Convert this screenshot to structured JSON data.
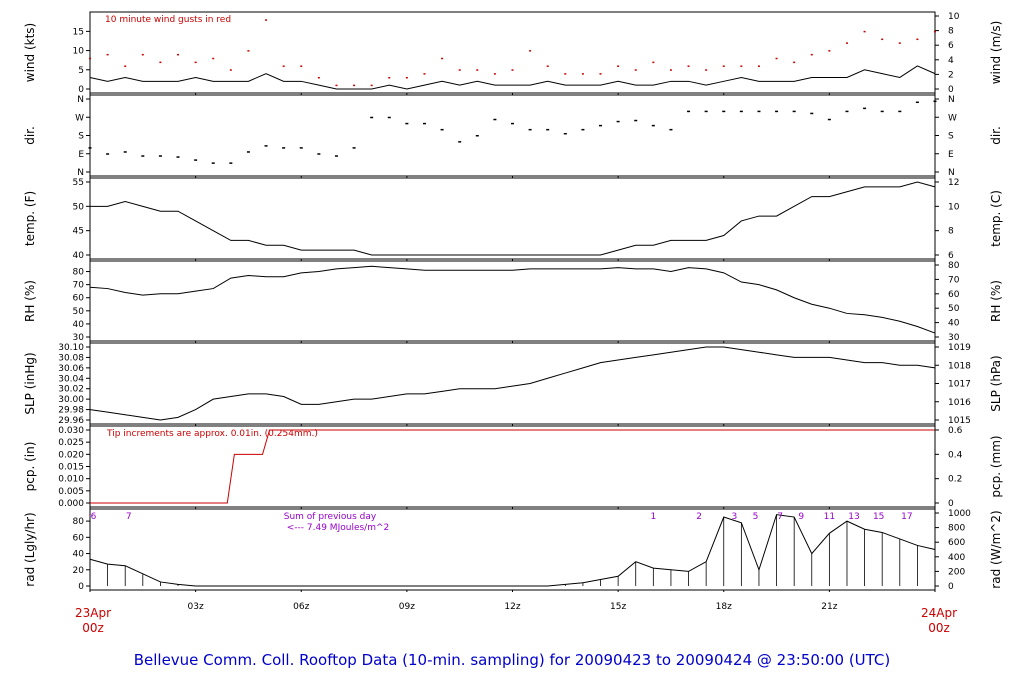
{
  "title": "Bellevue Comm. Coll. Rooftop Data (10-min. sampling) for 20090423  to  20090424 @ 23:50:00  (UTC)",
  "colors": {
    "line": "#000000",
    "gust": "#cc0000",
    "note": "#cc0000",
    "hour": "#9900cc",
    "footer": "#0000cc"
  },
  "x_axis": {
    "ticks": [
      "03z",
      "06z",
      "09z",
      "12z",
      "15z",
      "18z",
      "21z"
    ],
    "start": [
      "23Apr",
      "00z"
    ],
    "end": [
      "24Apr",
      "00z"
    ]
  },
  "panels": {
    "wind": {
      "ylabel_left": "wind (kts)",
      "ylabel_right": "wind (m/s)",
      "left_ticks": [
        "0",
        "5",
        "10",
        "15"
      ],
      "right_ticks": [
        "0",
        "2",
        "4",
        "6",
        "8",
        "10"
      ],
      "note": "10  minute wind gusts in red"
    },
    "dir": {
      "ylabel_left": "dir.",
      "ylabel_right": "dir.",
      "left_ticks": [
        "N",
        "E",
        "S",
        "W",
        "N"
      ],
      "right_ticks": [
        "N",
        "E",
        "S",
        "W",
        "N"
      ]
    },
    "temp": {
      "ylabel_left": "temp. (F)",
      "ylabel_right": "temp. (C)",
      "left_ticks": [
        "40",
        "45",
        "50",
        "55"
      ],
      "right_ticks": [
        "6",
        "8",
        "10",
        "12"
      ]
    },
    "rh": {
      "ylabel_left": "RH (%)",
      "ylabel_right": "RH (%)",
      "left_ticks": [
        "30",
        "40",
        "50",
        "60",
        "70",
        "80"
      ],
      "right_ticks": [
        "30",
        "40",
        "50",
        "60",
        "70",
        "80"
      ]
    },
    "slp": {
      "ylabel_left": "SLP (inHg)",
      "ylabel_right": "SLP (hPa)",
      "left_ticks": [
        "29.96",
        "29.98",
        "30.00",
        "30.02",
        "30.04",
        "30.06",
        "30.08",
        "30.10"
      ],
      "right_ticks": [
        "1015",
        "1016",
        "1017",
        "1018",
        "1019"
      ]
    },
    "pcp": {
      "ylabel_left": "pcp. (in)",
      "ylabel_right": "pcp. (mm)",
      "left_ticks": [
        "0.000",
        "0.005",
        "0.010",
        "0.015",
        "0.020",
        "0.025",
        "0.030"
      ],
      "right_ticks": [
        "0",
        "0.2",
        "0.4",
        "0.6"
      ],
      "note": "Tip increments are approx. 0.01in. (0.254mm.)"
    },
    "rad": {
      "ylabel_left": "rad (Lgly/hr)",
      "ylabel_right": "rad (W/m^2)",
      "left_ticks": [
        "0",
        "20",
        "40",
        "60",
        "80"
      ],
      "right_ticks": [
        "0",
        "200",
        "400",
        "600",
        "800",
        "1000"
      ],
      "sum_label": "Sum of previous day",
      "sum_value": "<--- 7.49 MJoules/m^2",
      "hour_marks": [
        "6",
        "7",
        "1",
        "2",
        "3",
        "5",
        "7",
        "9",
        "11",
        "13",
        "15",
        "17"
      ]
    }
  },
  "chart_data": [
    {
      "type": "line",
      "name": "wind",
      "units": "kts",
      "ylim": [
        0,
        19
      ],
      "x_hours": [
        0,
        0.5,
        1,
        1.5,
        2,
        2.5,
        3,
        3.5,
        4,
        4.5,
        5,
        5.5,
        6,
        6.5,
        7,
        7.5,
        8,
        8.5,
        9,
        9.5,
        10,
        10.5,
        11,
        11.5,
        12,
        12.5,
        13,
        13.5,
        14,
        14.5,
        15,
        15.5,
        16,
        16.5,
        17,
        17.5,
        18,
        18.5,
        19,
        19.5,
        20,
        20.5,
        21,
        21.5,
        22,
        22.5,
        23,
        23.5,
        24
      ],
      "series": [
        {
          "name": "wind speed",
          "values": [
            3,
            2,
            3,
            2,
            2,
            2,
            3,
            2,
            2,
            2,
            4,
            2,
            2,
            1,
            0,
            0,
            0,
            1,
            0,
            1,
            2,
            1,
            2,
            1,
            1,
            1,
            2,
            1,
            1,
            1,
            2,
            1,
            1,
            2,
            2,
            1,
            2,
            3,
            2,
            2,
            2,
            3,
            3,
            3,
            5,
            4,
            3,
            6,
            4
          ]
        },
        {
          "name": "10  minute wind gusts in red",
          "values": [
            8,
            9,
            6,
            9,
            7,
            9,
            7,
            8,
            5,
            10,
            18,
            6,
            6,
            3,
            1,
            1,
            1,
            3,
            3,
            4,
            8,
            5,
            5,
            4,
            5,
            10,
            6,
            4,
            4,
            4,
            6,
            5,
            7,
            5,
            6,
            5,
            6,
            6,
            6,
            8,
            7,
            9,
            10,
            12,
            15,
            13,
            12,
            13,
            15
          ]
        }
      ]
    },
    {
      "type": "scatter",
      "name": "wind direction",
      "ylim": [
        0,
        360
      ],
      "x_hours": [
        0,
        0.5,
        1,
        1.5,
        2,
        2.5,
        3,
        3.5,
        4,
        4.5,
        5,
        5.5,
        6,
        6.5,
        7,
        7.5,
        8,
        8.5,
        9,
        9.5,
        10,
        10.5,
        11,
        11.5,
        12,
        12.5,
        13,
        13.5,
        14,
        14.5,
        15,
        15.5,
        16,
        16.5,
        17,
        17.5,
        18,
        18.5,
        19,
        19.5,
        20,
        20.5,
        21,
        21.5,
        22,
        22.5,
        23,
        23.5,
        24
      ],
      "values": [
        120,
        90,
        100,
        80,
        80,
        75,
        60,
        45,
        45,
        100,
        130,
        120,
        120,
        90,
        80,
        120,
        270,
        270,
        240,
        240,
        210,
        150,
        180,
        260,
        240,
        210,
        210,
        190,
        210,
        230,
        250,
        255,
        230,
        210,
        300,
        300,
        300,
        300,
        300,
        300,
        300,
        290,
        260,
        300,
        315,
        300,
        300,
        345,
        350
      ]
    },
    {
      "type": "line",
      "name": "temperature",
      "units": "F",
      "ylim": [
        40,
        55
      ],
      "x_hours": [
        0,
        0.5,
        1,
        1.5,
        2,
        2.5,
        3,
        3.5,
        4,
        4.5,
        5,
        5.5,
        6,
        6.5,
        7,
        7.5,
        8,
        8.5,
        9,
        9.5,
        10,
        10.5,
        11,
        11.5,
        12,
        12.5,
        13,
        13.5,
        14,
        14.5,
        15,
        15.5,
        16,
        16.5,
        17,
        17.5,
        18,
        18.5,
        19,
        19.5,
        20,
        20.5,
        21,
        21.5,
        22,
        22.5,
        23,
        23.5,
        24
      ],
      "values": [
        50,
        50,
        51,
        50,
        49,
        49,
        47,
        45,
        43,
        43,
        42,
        42,
        41,
        41,
        41,
        41,
        40,
        40,
        40,
        40,
        40,
        40,
        40,
        40,
        40,
        40,
        40,
        40,
        40,
        40,
        41,
        42,
        42,
        43,
        43,
        43,
        44,
        47,
        48,
        48,
        50,
        52,
        52,
        53,
        54,
        54,
        54,
        55,
        54
      ]
    },
    {
      "type": "line",
      "name": "RH",
      "units": "%",
      "ylim": [
        30,
        85
      ],
      "x_hours": [
        0,
        0.5,
        1,
        1.5,
        2,
        2.5,
        3,
        3.5,
        4,
        4.5,
        5,
        5.5,
        6,
        6.5,
        7,
        7.5,
        8,
        8.5,
        9,
        9.5,
        10,
        10.5,
        11,
        11.5,
        12,
        12.5,
        13,
        13.5,
        14,
        14.5,
        15,
        15.5,
        16,
        16.5,
        17,
        17.5,
        18,
        18.5,
        19,
        19.5,
        20,
        20.5,
        21,
        21.5,
        22,
        22.5,
        23,
        23.5,
        24
      ],
      "values": [
        68,
        67,
        64,
        62,
        63,
        63,
        65,
        67,
        75,
        77,
        76,
        76,
        79,
        80,
        82,
        83,
        84,
        83,
        82,
        81,
        81,
        81,
        81,
        81,
        81,
        82,
        82,
        82,
        82,
        82,
        83,
        82,
        82,
        80,
        83,
        82,
        79,
        72,
        70,
        66,
        60,
        55,
        52,
        48,
        47,
        45,
        42,
        38,
        33
      ]
    },
    {
      "type": "line",
      "name": "SLP",
      "units": "inHg",
      "ylim": [
        29.96,
        30.1
      ],
      "x_hours": [
        0,
        0.5,
        1,
        1.5,
        2,
        2.5,
        3,
        3.5,
        4,
        4.5,
        5,
        5.5,
        6,
        6.5,
        7,
        7.5,
        8,
        8.5,
        9,
        9.5,
        10,
        10.5,
        11,
        11.5,
        12,
        12.5,
        13,
        13.5,
        14,
        14.5,
        15,
        15.5,
        16,
        16.5,
        17,
        17.5,
        18,
        18.5,
        19,
        19.5,
        20,
        20.5,
        21,
        21.5,
        22,
        22.5,
        23,
        23.5,
        24
      ],
      "values": [
        29.98,
        29.975,
        29.97,
        29.965,
        29.96,
        29.965,
        29.98,
        30.0,
        30.005,
        30.01,
        30.01,
        30.005,
        29.99,
        29.99,
        29.995,
        30.0,
        30.0,
        30.005,
        30.01,
        30.01,
        30.015,
        30.02,
        30.02,
        30.02,
        30.025,
        30.03,
        30.04,
        30.05,
        30.06,
        30.07,
        30.075,
        30.08,
        30.085,
        30.09,
        30.095,
        30.1,
        30.1,
        30.095,
        30.09,
        30.085,
        30.08,
        30.08,
        30.08,
        30.075,
        30.07,
        30.07,
        30.065,
        30.065,
        30.06
      ]
    },
    {
      "type": "line",
      "name": "precipitation",
      "units": "in",
      "ylim": [
        0,
        0.03
      ],
      "x_hours": [
        0,
        3.9,
        4.1,
        4.9,
        5.1,
        24
      ],
      "values": [
        0,
        0,
        0.02,
        0.02,
        0.03,
        0.03
      ]
    },
    {
      "type": "bar",
      "name": "solar radiation",
      "units": "Lgly/hr",
      "ylim": [
        0,
        90
      ],
      "x_hours": [
        0,
        0.5,
        1,
        1.5,
        2,
        2.5,
        3,
        3.5,
        4,
        4.5,
        5,
        5.5,
        6,
        6.5,
        7,
        7.5,
        8,
        8.5,
        9,
        9.5,
        10,
        10.5,
        11,
        11.5,
        12,
        12.5,
        13,
        13.5,
        14,
        14.5,
        15,
        15.5,
        16,
        16.5,
        17,
        17.5,
        18,
        18.5,
        19,
        19.5,
        20,
        20.5,
        21,
        21.5,
        22,
        22.5,
        23,
        23.5,
        24
      ],
      "values": [
        33,
        27,
        25,
        15,
        5,
        2,
        0,
        0,
        0,
        0,
        0,
        0,
        0,
        0,
        0,
        0,
        0,
        0,
        0,
        0,
        0,
        0,
        0,
        0,
        0,
        0,
        0,
        2,
        4,
        8,
        12,
        30,
        22,
        20,
        18,
        30,
        85,
        78,
        20,
        88,
        85,
        40,
        65,
        80,
        70,
        66,
        58,
        50,
        45
      ]
    }
  ]
}
